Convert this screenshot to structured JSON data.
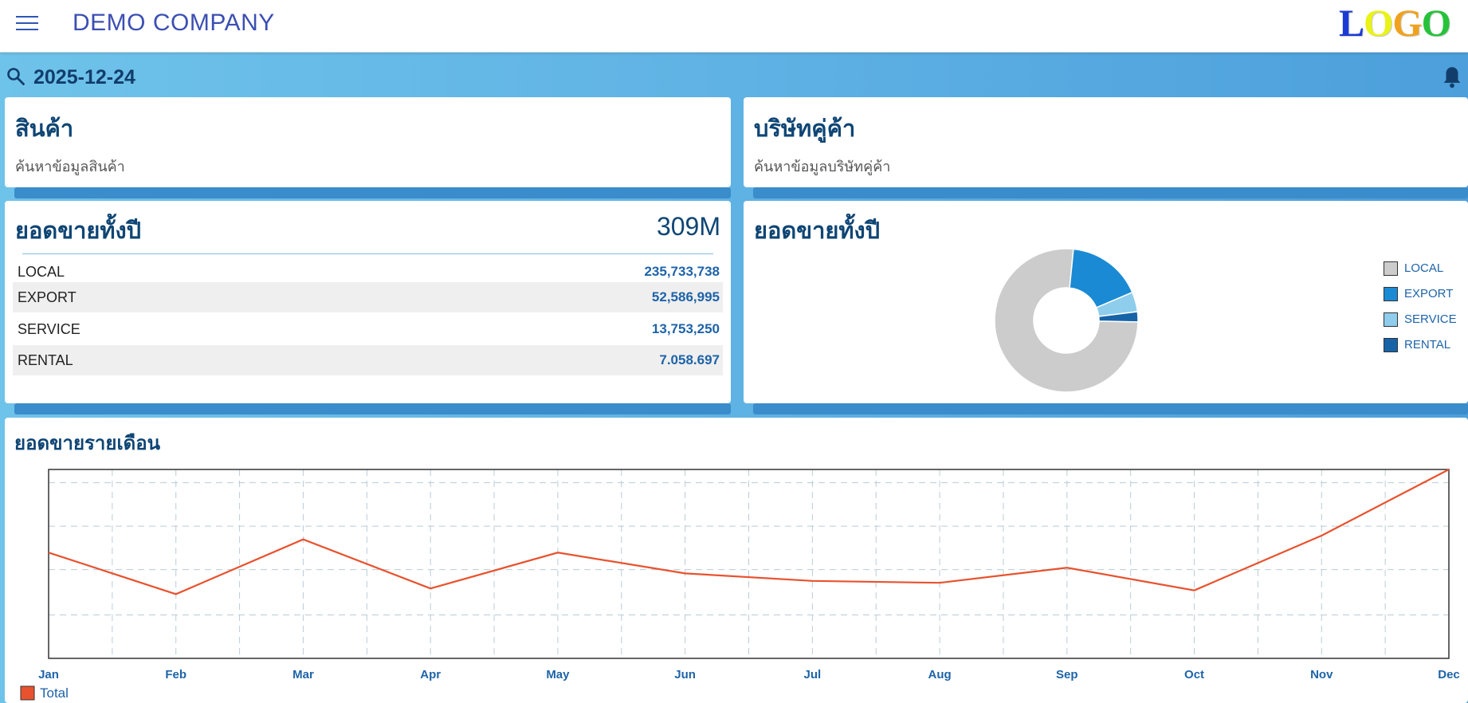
{
  "header": {
    "company": "DEMO COMPANY",
    "logo": [
      "L",
      "O",
      "G",
      "O"
    ]
  },
  "search": {
    "date": "2025-12-24"
  },
  "cards": {
    "products": {
      "title": "สินค้า",
      "subtitle": "ค้นหาข้อมูลสินค้า"
    },
    "partners": {
      "title": "บริษัทคู่ค้า",
      "subtitle": "ค้นหาข้อมูลบริษัทคู่ค้า"
    }
  },
  "annual_sales": {
    "title": "ยอดขายทั้งปี",
    "total": "309M",
    "rows": [
      {
        "label": "LOCAL",
        "value": "235,733,738"
      },
      {
        "label": "EXPORT",
        "value": "52,586,995"
      },
      {
        "label": "SERVICE",
        "value": "13,753,250"
      },
      {
        "label": "RENTAL",
        "value": "7.058.697"
      }
    ]
  },
  "annual_pie": {
    "title": "ยอดขายทั้งปี",
    "legend": [
      "LOCAL",
      "EXPORT",
      "SERVICE",
      "RENTAL"
    ]
  },
  "monthly": {
    "title": "ยอดขายรายเดือน"
  },
  "colors": {
    "local": "#cccccc",
    "export": "#1a8ad4",
    "service": "#8ecdeb",
    "rental": "#1763a8",
    "line": "#e8522e",
    "axis_text": "#1e63a8"
  },
  "chart_data": [
    {
      "type": "pie",
      "title": "ยอดขายทั้งปี",
      "categories": [
        "LOCAL",
        "EXPORT",
        "SERVICE",
        "RENTAL"
      ],
      "values": [
        235733738,
        52586995,
        13753250,
        7058697
      ]
    },
    {
      "type": "line",
      "title": "ยอดขายรายเดือน",
      "categories": [
        "Jan",
        "Feb",
        "Mar",
        "Apr",
        "May",
        "Jun",
        "Jul",
        "Aug",
        "Sep",
        "Oct",
        "Nov",
        "Dec"
      ],
      "series": [
        {
          "name": "Total",
          "values": [
            56,
            34,
            63,
            37,
            56,
            45,
            41,
            40,
            48,
            36,
            65,
            100
          ]
        }
      ],
      "ylim": [
        0,
        100
      ],
      "grid": true,
      "legend": "bottom-left"
    }
  ]
}
